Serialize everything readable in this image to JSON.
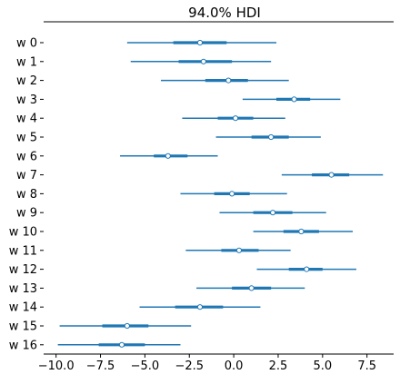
{
  "chart_data": {
    "type": "forest",
    "title": "94.0% HDI",
    "xlabel": "",
    "ylabel": "",
    "xlim": [
      -10.7,
      9.0
    ],
    "xticks": [
      -10.0,
      -7.5,
      -5.0,
      -2.5,
      0.0,
      2.5,
      5.0,
      7.5
    ],
    "xtick_labels": [
      "−10.0",
      "−7.5",
      "−5.0",
      "−2.5",
      "0.0",
      "2.5",
      "5.0",
      "7.5"
    ],
    "grid": false,
    "colors": {
      "interval": "#1f77b4",
      "median_face": "#ffffff"
    },
    "categories": [
      "w 0",
      "w 1",
      "w 2",
      "w 3",
      "w 4",
      "w 5",
      "w 6",
      "w 7",
      "w 8",
      "w 9",
      "w 10",
      "w 11",
      "w 12",
      "w 13",
      "w 14",
      "w 15",
      "w 16"
    ],
    "hdi_low": [
      -6.0,
      -5.8,
      -4.1,
      0.5,
      -2.9,
      -1.0,
      -6.4,
      2.7,
      -3.0,
      -0.8,
      1.1,
      -2.7,
      1.3,
      -2.1,
      -5.3,
      -9.8,
      -9.9
    ],
    "iqr_low": [
      -3.4,
      -3.1,
      -1.6,
      2.4,
      -0.9,
      1.0,
      -4.5,
      4.4,
      -1.1,
      1.1,
      2.8,
      -0.7,
      3.1,
      -0.1,
      -3.3,
      -7.4,
      -7.6
    ],
    "median": [
      -1.9,
      -1.7,
      -0.3,
      3.4,
      0.1,
      2.1,
      -3.7,
      5.5,
      -0.1,
      2.2,
      3.8,
      0.3,
      4.1,
      1.0,
      -1.9,
      -6.0,
      -6.3
    ],
    "iqr_high": [
      -0.4,
      -0.1,
      0.8,
      4.3,
      1.1,
      3.1,
      -2.6,
      6.5,
      0.9,
      3.3,
      4.8,
      1.4,
      5.0,
      2.1,
      -0.6,
      -4.8,
      -5.0
    ],
    "hdi_high": [
      2.4,
      2.1,
      3.1,
      6.0,
      2.9,
      4.9,
      -0.9,
      8.4,
      3.0,
      5.2,
      6.7,
      3.2,
      6.9,
      4.0,
      1.5,
      -2.4,
      -3.0
    ]
  }
}
